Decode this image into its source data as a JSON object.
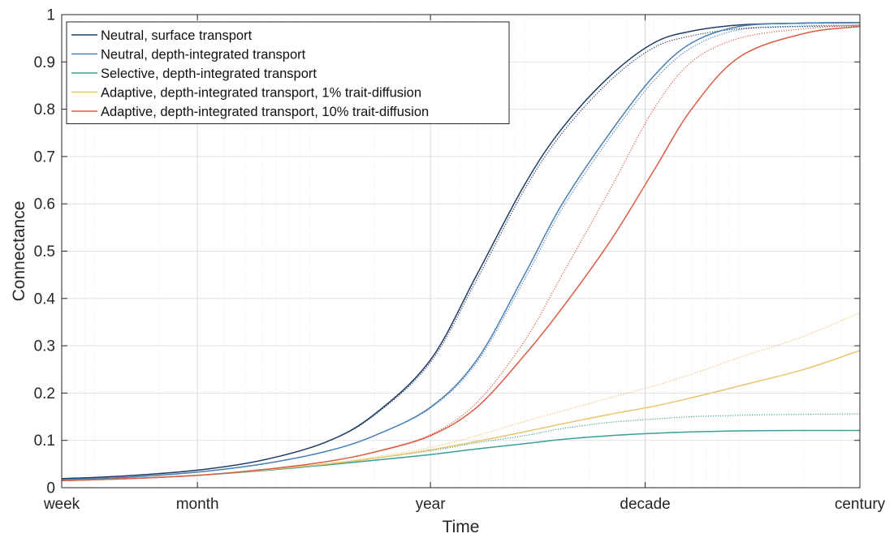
{
  "chart_data": {
    "type": "line",
    "title": "",
    "xlabel": "Time",
    "ylabel": "Connectance",
    "x_scale": "log",
    "x_unit": "days",
    "xlim": [
      7,
      36500
    ],
    "ylim": [
      0,
      1
    ],
    "grid": true,
    "legend_position": "top-left",
    "x_ticks": [
      {
        "value": 7,
        "label": "week"
      },
      {
        "value": 30,
        "label": "month"
      },
      {
        "value": 365,
        "label": "year"
      },
      {
        "value": 3650,
        "label": "decade"
      },
      {
        "value": 36500,
        "label": "century"
      }
    ],
    "y_ticks": [
      {
        "value": 0,
        "label": "0"
      },
      {
        "value": 0.1,
        "label": "0.1"
      },
      {
        "value": 0.2,
        "label": "0.2"
      },
      {
        "value": 0.3,
        "label": "0.3"
      },
      {
        "value": 0.4,
        "label": "0.4"
      },
      {
        "value": 0.5,
        "label": "0.5"
      },
      {
        "value": 0.6,
        "label": "0.6"
      },
      {
        "value": 0.7,
        "label": "0.7"
      },
      {
        "value": 0.8,
        "label": "0.8"
      },
      {
        "value": 0.9,
        "label": "0.9"
      },
      {
        "value": 1,
        "label": "1"
      }
    ],
    "x": [
      7,
      14,
      30,
      60,
      120,
      200,
      365,
      600,
      1000,
      1500,
      2500,
      4000,
      6000,
      10000,
      20000,
      36500
    ],
    "series": [
      {
        "name": "Neutral, surface transport",
        "color": "#1f3b63",
        "style": "solid",
        "values": [
          0.019,
          0.025,
          0.037,
          0.058,
          0.097,
          0.155,
          0.27,
          0.45,
          0.64,
          0.76,
          0.87,
          0.94,
          0.965,
          0.978,
          0.982,
          0.983
        ]
      },
      {
        "name": "Neutral, surface transport",
        "color": "#1f3b63",
        "style": "dotted",
        "legend": false,
        "values": [
          0.019,
          0.025,
          0.037,
          0.058,
          0.097,
          0.153,
          0.265,
          0.44,
          0.63,
          0.75,
          0.86,
          0.93,
          0.955,
          0.97,
          0.975,
          0.976
        ]
      },
      {
        "name": "Neutral, depth-integrated transport",
        "color": "#4a7fb5",
        "style": "solid",
        "values": [
          0.017,
          0.022,
          0.033,
          0.05,
          0.077,
          0.11,
          0.17,
          0.27,
          0.45,
          0.6,
          0.75,
          0.87,
          0.94,
          0.975,
          0.982,
          0.983
        ]
      },
      {
        "name": "Neutral, depth-integrated transport",
        "color": "#4a7fb5",
        "style": "dotted",
        "legend": false,
        "values": [
          0.017,
          0.022,
          0.033,
          0.05,
          0.077,
          0.11,
          0.168,
          0.265,
          0.44,
          0.59,
          0.74,
          0.86,
          0.93,
          0.968,
          0.976,
          0.978
        ]
      },
      {
        "name": "Selective, depth-integrated transport",
        "color": "#3a9e9a",
        "style": "solid",
        "values": [
          0.015,
          0.019,
          0.026,
          0.036,
          0.048,
          0.058,
          0.07,
          0.082,
          0.093,
          0.102,
          0.11,
          0.115,
          0.118,
          0.12,
          0.121,
          0.121
        ]
      },
      {
        "name": "Selective, depth-integrated transport",
        "color": "#3a9e9a",
        "style": "dotted",
        "legend": false,
        "values": [
          0.015,
          0.019,
          0.026,
          0.036,
          0.049,
          0.062,
          0.078,
          0.095,
          0.11,
          0.125,
          0.138,
          0.145,
          0.15,
          0.153,
          0.155,
          0.156
        ]
      },
      {
        "name": "Adaptive, depth-integrated transport, 1% trait-diffusion",
        "color": "#e8c46a",
        "style": "solid",
        "values": [
          0.015,
          0.019,
          0.026,
          0.037,
          0.05,
          0.062,
          0.08,
          0.098,
          0.118,
          0.135,
          0.155,
          0.172,
          0.19,
          0.215,
          0.25,
          0.29
        ]
      },
      {
        "name": "Adaptive, depth-integrated transport, 1% trait-diffusion",
        "color": "#e8c46a",
        "style": "dotted",
        "legend": false,
        "values": [
          0.015,
          0.019,
          0.026,
          0.037,
          0.051,
          0.065,
          0.085,
          0.11,
          0.14,
          0.162,
          0.19,
          0.215,
          0.24,
          0.275,
          0.32,
          0.37
        ]
      },
      {
        "name": "Adaptive, depth-integrated transport, 10% trait-diffusion",
        "color": "#dd5c45",
        "style": "solid",
        "values": [
          0.015,
          0.019,
          0.026,
          0.038,
          0.055,
          0.075,
          0.11,
          0.17,
          0.28,
          0.38,
          0.52,
          0.67,
          0.8,
          0.91,
          0.96,
          0.975
        ]
      },
      {
        "name": "Adaptive, depth-integrated transport, 10% trait-diffusion",
        "color": "#dd5c45",
        "style": "dotted",
        "legend": false,
        "values": [
          0.015,
          0.019,
          0.026,
          0.038,
          0.055,
          0.076,
          0.112,
          0.18,
          0.31,
          0.45,
          0.63,
          0.8,
          0.9,
          0.95,
          0.97,
          0.978
        ]
      }
    ]
  }
}
